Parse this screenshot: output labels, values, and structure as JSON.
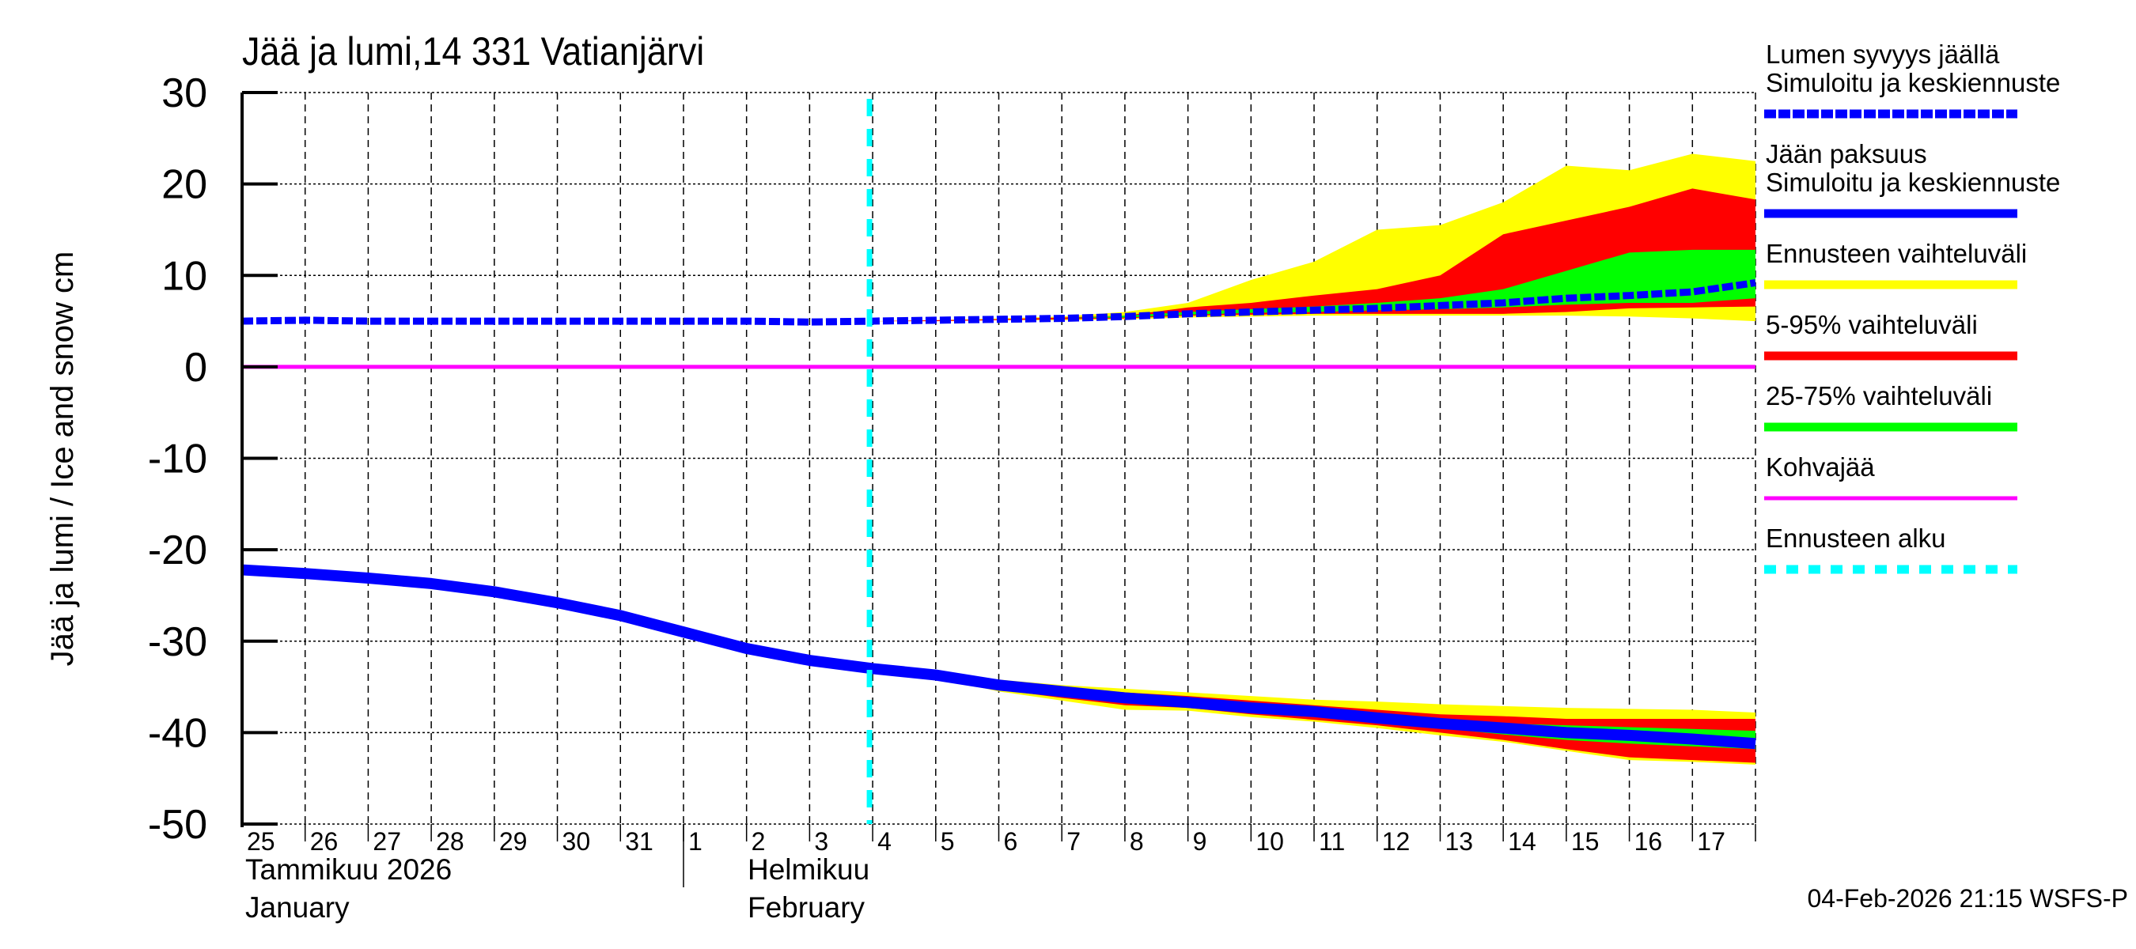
{
  "chart_data": {
    "type": "area",
    "title": "Jää ja lumi,14 331 Vatianjärvi",
    "ylabel": "Jää ja lumi / Ice and snow    cm",
    "ylim": [
      -50,
      30
    ],
    "yticks": [
      30,
      20,
      10,
      0,
      -10,
      -20,
      -30,
      -40,
      -50
    ],
    "xlim": [
      "2026-01-25",
      "2026-02-18"
    ],
    "grid": true,
    "legend_placement": "right",
    "x_day_labels": [
      "25",
      "26",
      "27",
      "28",
      "29",
      "30",
      "31",
      "1",
      "2",
      "3",
      "4",
      "5",
      "6",
      "7",
      "8",
      "9",
      "10",
      "11",
      "12",
      "13",
      "14",
      "15",
      "16",
      "17"
    ],
    "month_labels": {
      "jan_fi": "Tammikuu  2026",
      "jan_en": "January",
      "feb_fi": "Helmikuu",
      "feb_en": "February"
    },
    "forecast_start": "2026-02-04",
    "timestamp": "04-Feb-2026 21:15 WSFS-P",
    "dates": [
      "2026-01-25",
      "2026-01-26",
      "2026-01-27",
      "2026-01-28",
      "2026-01-29",
      "2026-01-30",
      "2026-01-31",
      "2026-02-01",
      "2026-02-02",
      "2026-02-03",
      "2026-02-04",
      "2026-02-05",
      "2026-02-06",
      "2026-02-07",
      "2026-02-08",
      "2026-02-09",
      "2026-02-10",
      "2026-02-11",
      "2026-02-12",
      "2026-02-13",
      "2026-02-14",
      "2026-02-15",
      "2026-02-16",
      "2026-02-17",
      "2026-02-18"
    ],
    "series": [
      {
        "name": "Lumen syvyys jäällä Simuloitu ja keskiennuste",
        "color": "#0000ff",
        "style": "dashed",
        "values": [
          5,
          5.1,
          5,
          5,
          5,
          5,
          5,
          5,
          5,
          4.9,
          5,
          5.1,
          5.2,
          5.3,
          5.5,
          5.8,
          6.0,
          6.2,
          6.4,
          6.7,
          7.0,
          7.5,
          7.8,
          8.2,
          9.2
        ]
      },
      {
        "name": "Jään paksuus Simuloitu ja keskiennuste",
        "color": "#0000ff",
        "style": "solid",
        "values": [
          -22.2,
          -22.6,
          -23.1,
          -23.7,
          -24.6,
          -25.8,
          -27.2,
          -29.0,
          -30.8,
          -32.1,
          -33.0,
          -33.7,
          -34.8,
          -35.5,
          -36.2,
          -36.7,
          -37.3,
          -37.7,
          -38.4,
          -39.0,
          -39.5,
          -40.0,
          -40.3,
          -40.7,
          -41.2
        ]
      },
      {
        "name": "Kohvajää",
        "color": "#ff00ff",
        "style": "solid",
        "values": [
          0,
          0,
          0,
          0,
          0,
          0,
          0,
          0,
          0,
          0,
          0,
          0,
          0,
          0,
          0,
          0,
          0,
          0,
          0,
          0,
          0,
          0,
          0,
          0,
          0
        ]
      }
    ],
    "bands_start_date": "2026-02-04",
    "bands": [
      {
        "name": "Ennusteen vaihteluväli",
        "color": "#ffff00",
        "snow_low": [
          5,
          5,
          5.1,
          5.1,
          5.2,
          5.4,
          5.5,
          5.6,
          5.6,
          5.6,
          5.6,
          5.6,
          5.5,
          5.3,
          5.0
        ],
        "snow_high": [
          5,
          5.1,
          5.3,
          5.5,
          6.0,
          7.0,
          9.5,
          11.5,
          15.0,
          15.5,
          18.0,
          22.0,
          21.5,
          23.3,
          22.5
        ],
        "ice_low": [
          -33,
          -34.0,
          -35.5,
          -36.5,
          -37.5,
          -37.6,
          -38.3,
          -38.8,
          -39.5,
          -40.3,
          -41.0,
          -42.0,
          -43.0,
          -43.2,
          -43.5
        ],
        "ice_high": [
          -33,
          -33.4,
          -34.2,
          -34.8,
          -35.2,
          -35.6,
          -36.0,
          -36.4,
          -36.6,
          -36.9,
          -37.1,
          -37.3,
          -37.4,
          -37.5,
          -37.8
        ]
      },
      {
        "name": "5-95% vaihteluväli",
        "color": "#ff0000",
        "snow_low": [
          5,
          5,
          5.1,
          5.2,
          5.3,
          5.6,
          5.7,
          5.8,
          5.8,
          5.8,
          5.8,
          6.0,
          6.4,
          6.5,
          6.6
        ],
        "snow_high": [
          5,
          5.1,
          5.2,
          5.4,
          5.6,
          6.5,
          7.0,
          7.8,
          8.5,
          10.0,
          14.5,
          16.0,
          17.5,
          19.5,
          18.3
        ],
        "ice_low": [
          -33,
          -33.9,
          -35.3,
          -36.2,
          -37.0,
          -37.3,
          -38.0,
          -38.6,
          -39.2,
          -40.0,
          -40.8,
          -41.8,
          -42.7,
          -43.0,
          -43.3
        ],
        "ice_high": [
          -33,
          -33.5,
          -34.4,
          -35.0,
          -35.6,
          -36.0,
          -36.5,
          -37.0,
          -37.5,
          -38.0,
          -38.2,
          -38.5,
          -38.5,
          -38.5,
          -38.5
        ]
      },
      {
        "name": "25-75% vaihteluväli",
        "color": "#00ff00",
        "snow_low": [
          5,
          5.1,
          5.2,
          5.3,
          5.4,
          5.7,
          5.9,
          6.0,
          6.2,
          6.3,
          6.5,
          6.8,
          7.0,
          7.0,
          7.5
        ],
        "snow_high": [
          5,
          5.1,
          5.2,
          5.3,
          5.6,
          6.0,
          6.3,
          6.6,
          7.0,
          7.5,
          8.5,
          10.5,
          12.5,
          12.8,
          12.8
        ],
        "ice_low": [
          -33,
          -33.8,
          -35.0,
          -35.8,
          -36.5,
          -37.0,
          -37.6,
          -38.1,
          -38.8,
          -39.5,
          -40.2,
          -40.8,
          -41.2,
          -41.5,
          -41.8
        ],
        "ice_high": [
          -33,
          -33.6,
          -34.6,
          -35.2,
          -35.9,
          -36.4,
          -37.0,
          -37.4,
          -38.0,
          -38.7,
          -39.0,
          -39.2,
          -39.4,
          -39.6,
          -39.8
        ]
      }
    ],
    "legend": [
      {
        "line1": "Lumen syvyys jäällä",
        "line2": "Simuloitu ja keskiennuste",
        "color": "#0000ff",
        "style": "dashed"
      },
      {
        "line1": "Jään paksuus",
        "line2": "Simuloitu ja keskiennuste",
        "color": "#0000ff",
        "style": "solid"
      },
      {
        "line1": "Ennusteen vaihteluväli",
        "color": "#ffff00",
        "style": "solid"
      },
      {
        "line1": "5-95% vaihteluväli",
        "color": "#ff0000",
        "style": "solid"
      },
      {
        "line1": "25-75% vaihteluväli",
        "color": "#00ff00",
        "style": "solid"
      },
      {
        "line1": "Kohvajää",
        "color": "#ff00ff",
        "style": "thin"
      },
      {
        "line1": "Ennusteen alku",
        "color": "#00ffff",
        "style": "dashed"
      }
    ]
  }
}
